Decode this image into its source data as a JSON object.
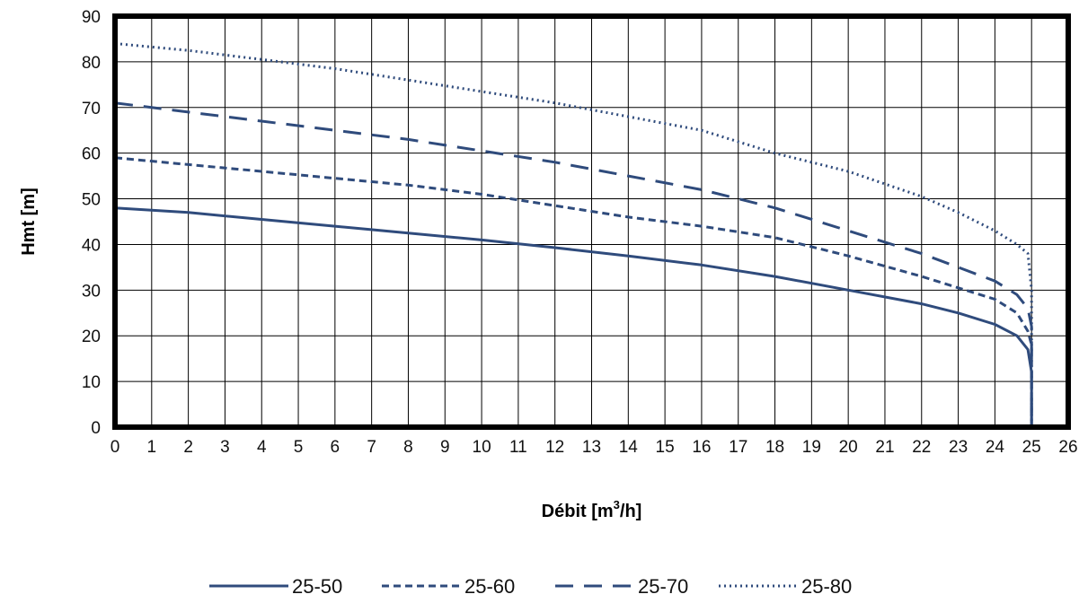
{
  "chart_data": {
    "type": "line",
    "title": "",
    "xlabel": "Débit [m³/h]",
    "xlabel_parts": {
      "main": "Débit [m",
      "sup": "3",
      "tail": "/h]"
    },
    "ylabel": "Hmt [m]",
    "xlim": [
      0,
      26
    ],
    "ylim": [
      0,
      90
    ],
    "x_ticks": [
      0,
      1,
      2,
      3,
      4,
      5,
      6,
      7,
      8,
      9,
      10,
      11,
      12,
      13,
      14,
      15,
      16,
      17,
      18,
      19,
      20,
      21,
      22,
      23,
      24,
      25,
      26
    ],
    "y_ticks": [
      0,
      10,
      20,
      30,
      40,
      50,
      60,
      70,
      80,
      90
    ],
    "grid": true,
    "legend_position": "bottom",
    "colors": {
      "series": "#2f4b7c",
      "grid": "#000000",
      "frame": "#000000"
    },
    "series": [
      {
        "name": "25-50",
        "style": "solid",
        "x": [
          0,
          2,
          4,
          6,
          8,
          10,
          12,
          14,
          16,
          18,
          20,
          22,
          23,
          24,
          24.6,
          24.9,
          25,
          25,
          25
        ],
        "y": [
          48,
          47,
          45.5,
          44,
          42.5,
          41,
          39.3,
          37.5,
          35.5,
          33,
          30,
          27,
          25,
          22.5,
          20,
          17,
          12,
          5,
          0
        ]
      },
      {
        "name": "25-60",
        "style": "dashed",
        "x": [
          0,
          2,
          4,
          6,
          8,
          10,
          12,
          14,
          16,
          18,
          20,
          22,
          23,
          24,
          24.6,
          24.9,
          25,
          25
        ],
        "y": [
          59,
          57.5,
          56,
          54.5,
          53,
          51,
          48.5,
          46,
          44,
          41.5,
          37.5,
          33,
          30.5,
          28,
          25,
          21,
          18,
          0
        ]
      },
      {
        "name": "25-70",
        "style": "longdash",
        "x": [
          0,
          2,
          4,
          6,
          8,
          10,
          12,
          14,
          16,
          18,
          20,
          22,
          23,
          24,
          24.6,
          24.9,
          25,
          25
        ],
        "y": [
          71,
          69,
          67,
          65,
          63,
          60.5,
          58,
          55,
          52,
          48,
          43,
          38,
          35,
          32,
          29,
          26,
          22,
          0
        ]
      },
      {
        "name": "25-80",
        "style": "dotted",
        "x": [
          0,
          2,
          4,
          6,
          8,
          10,
          12,
          14,
          16,
          18,
          20,
          22,
          23,
          24,
          24.6,
          24.9,
          25,
          25
        ],
        "y": [
          84,
          82.5,
          80.5,
          78.5,
          76,
          73.5,
          71,
          68,
          65,
          60,
          56,
          50.5,
          47,
          43,
          40,
          38,
          30,
          0
        ]
      }
    ]
  }
}
